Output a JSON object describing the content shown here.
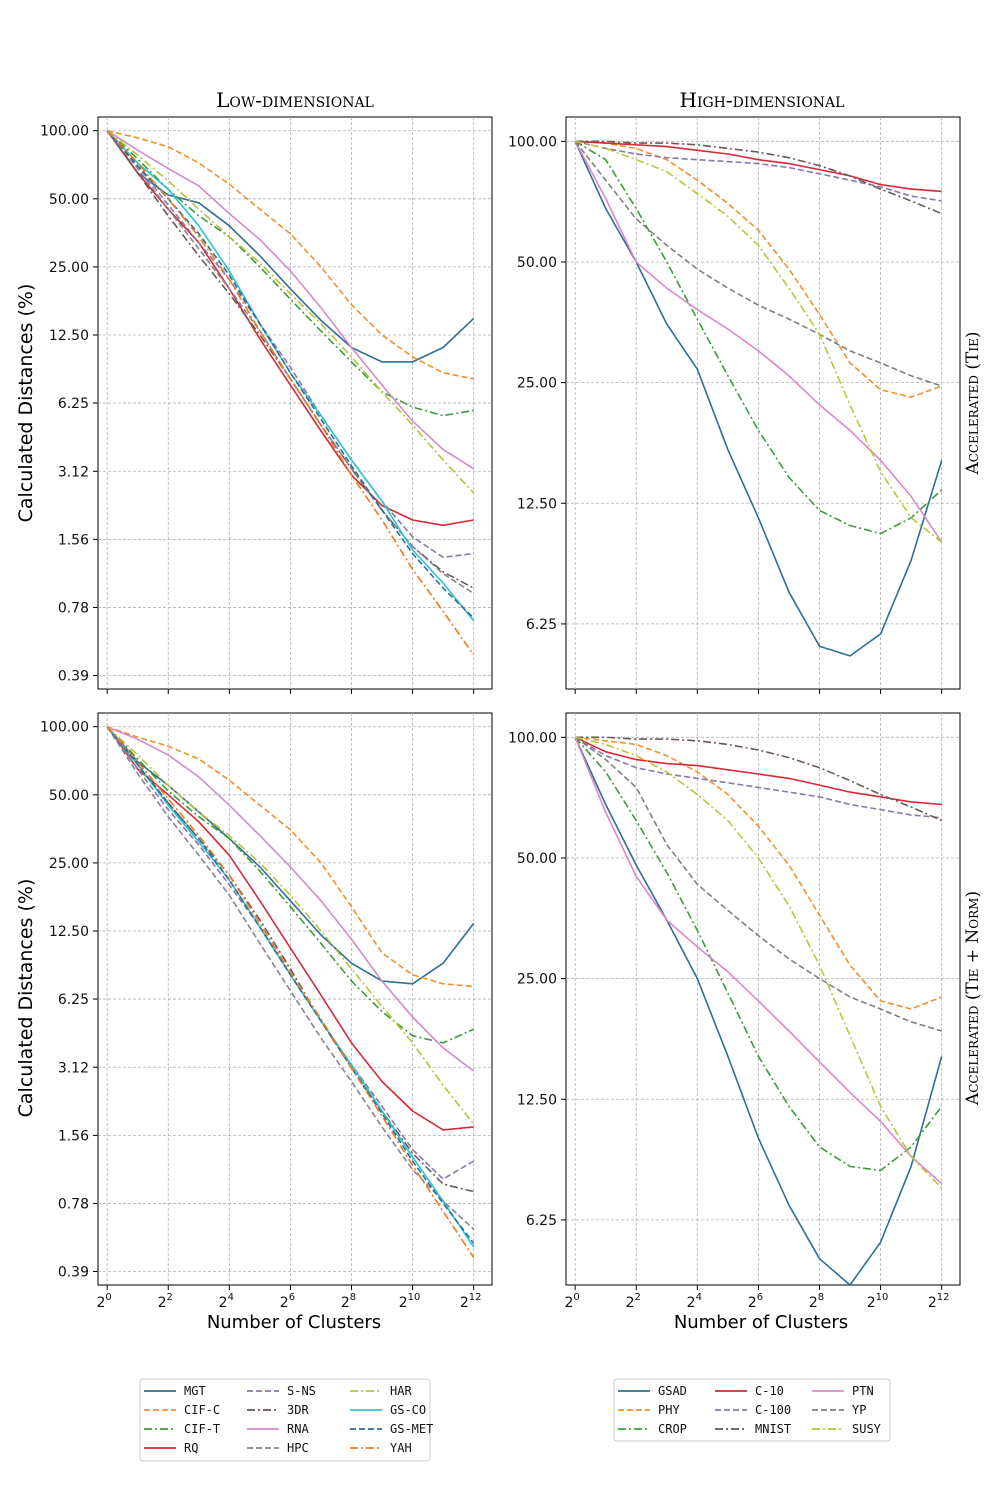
{
  "column_titles": [
    "Low-dimensional",
    "High-dimensional"
  ],
  "row_titles": [
    "Accelerated (Tie)",
    "Accelerated (Tie + Norm)"
  ],
  "ylabel": "Calculated Distances (%)",
  "xlabel": "Number of Clusters",
  "chart_data": [
    {
      "type": "line",
      "title": "Low-dimensional",
      "row": "Accelerated (Tie)",
      "xscale": "log2",
      "yscale": "log2",
      "x": [
        1,
        2,
        4,
        8,
        16,
        32,
        64,
        128,
        256,
        512,
        1024,
        2048,
        4096
      ],
      "xticks": [
        0,
        2,
        4,
        6,
        8,
        10,
        12
      ],
      "yticks": [
        "0.39",
        "0.78",
        "1.56",
        "3.12",
        "6.25",
        "12.50",
        "25.00",
        "50.00",
        "100.00"
      ],
      "ylim": [
        0.34,
        115
      ],
      "series": [
        {
          "name": "MGT",
          "values": [
            100,
            65,
            52,
            48,
            38,
            28,
            20,
            14.5,
            11,
            9.5,
            9.5,
            11,
            14.8
          ]
        },
        {
          "name": "CIF-C",
          "values": [
            100,
            93,
            85,
            72,
            58,
            45,
            35,
            25,
            17,
            12.5,
            10,
            8.5,
            8
          ]
        },
        {
          "name": "CIF-T",
          "values": [
            100,
            75,
            55,
            42,
            34,
            25,
            18,
            13,
            9.5,
            7,
            6,
            5.5,
            5.8
          ]
        },
        {
          "name": "RQ",
          "values": [
            100,
            65,
            45,
            32,
            20,
            12,
            7.5,
            4.7,
            3,
            2.2,
            1.9,
            1.8,
            1.9
          ]
        },
        {
          "name": "S-NS",
          "values": [
            100,
            70,
            47,
            32,
            22,
            14,
            9,
            5.5,
            3.5,
            2.3,
            1.6,
            1.3,
            1.35
          ]
        },
        {
          "name": "3DR",
          "values": [
            100,
            65,
            42,
            28,
            19,
            12.5,
            8,
            5,
            3.2,
            2.1,
            1.45,
            1.12,
            0.95
          ]
        },
        {
          "name": "RNA",
          "values": [
            100,
            82,
            68,
            57,
            43,
            33,
            24,
            16.5,
            11,
            7.5,
            5.2,
            3.9,
            3.2
          ]
        },
        {
          "name": "HPC",
          "values": [
            100,
            68,
            45,
            30,
            20,
            13,
            8,
            5,
            3.2,
            2.1,
            1.45,
            1.1,
            0.9
          ]
        },
        {
          "name": "HAR",
          "values": [
            100,
            78,
            60,
            45,
            34,
            26,
            19,
            14,
            10,
            7,
            5,
            3.5,
            2.5
          ]
        },
        {
          "name": "GS-CO",
          "values": [
            100,
            72,
            55,
            38,
            24,
            14,
            8.5,
            5.5,
            3.5,
            2.3,
            1.4,
            1,
            0.68
          ]
        },
        {
          "name": "GS-MET",
          "values": [
            100,
            70,
            50,
            35,
            23,
            14,
            8.5,
            5.3,
            3.3,
            2.1,
            1.35,
            0.95,
            0.7
          ]
        },
        {
          "name": "YAH",
          "values": [
            100,
            72,
            50,
            34,
            22,
            13,
            8,
            5,
            3,
            1.9,
            1.15,
            0.75,
            0.48
          ]
        }
      ]
    },
    {
      "type": "line",
      "title": "High-dimensional",
      "row": "Accelerated (Tie)",
      "xscale": "log2",
      "yscale": "log2",
      "x": [
        1,
        2,
        4,
        8,
        16,
        32,
        64,
        128,
        256,
        512,
        1024,
        2048,
        4096
      ],
      "xticks": [
        0,
        2,
        4,
        6,
        8,
        10,
        12
      ],
      "yticks": [
        "6.25",
        "12.50",
        "25.00",
        "50.00",
        "100.00"
      ],
      "ylim": [
        4.3,
        115
      ],
      "series": [
        {
          "name": "GSAD",
          "values": [
            100,
            68,
            50,
            35,
            27,
            17,
            11.5,
            7.5,
            5.5,
            5.2,
            5.9,
            9,
            16
          ]
        },
        {
          "name": "PHY",
          "values": [
            100,
            99,
            96,
            90,
            80,
            70,
            60,
            48,
            37,
            28,
            24,
            23,
            24.5
          ]
        },
        {
          "name": "CROP",
          "values": [
            100,
            90,
            68,
            50,
            36,
            26,
            19,
            14.5,
            12,
            11,
            10.5,
            11.5,
            13.5
          ]
        },
        {
          "name": "C-10",
          "values": [
            100,
            99,
            98,
            97,
            95,
            93,
            90,
            88,
            85,
            82,
            78,
            76,
            75
          ]
        },
        {
          "name": "C-100",
          "values": [
            100,
            96,
            93,
            91,
            90,
            89,
            88,
            86,
            83,
            80,
            77,
            73,
            71
          ]
        },
        {
          "name": "MNIST",
          "values": [
            100,
            100,
            99,
            99,
            98,
            96,
            94,
            91,
            87,
            82,
            76,
            71,
            66
          ]
        },
        {
          "name": "PTN",
          "values": [
            100,
            72,
            50,
            43,
            38,
            34,
            30,
            26,
            22,
            19,
            16,
            13,
            10
          ]
        },
        {
          "name": "YP",
          "values": [
            100,
            80,
            64,
            55,
            48,
            43,
            39,
            36,
            33,
            30,
            28,
            26,
            24.5
          ]
        },
        {
          "name": "SUSY",
          "values": [
            100,
            96,
            90,
            84,
            74,
            65,
            55,
            43,
            33,
            22,
            15,
            11.5,
            10
          ]
        }
      ]
    },
    {
      "type": "line",
      "title": "Low-dimensional",
      "row": "Accelerated (Tie + Norm)",
      "xscale": "log2",
      "yscale": "log2",
      "x": [
        1,
        2,
        4,
        8,
        16,
        32,
        64,
        128,
        256,
        512,
        1024,
        2048,
        4096
      ],
      "xticks": [
        0,
        2,
        4,
        6,
        8,
        10,
        12
      ],
      "yticks": [
        "0.39",
        "0.78",
        "1.56",
        "3.12",
        "6.25",
        "12.50",
        "25.00",
        "50.00",
        "100.00"
      ],
      "ylim": [
        0.34,
        115
      ],
      "series": [
        {
          "name": "MGT",
          "values": [
            100,
            70,
            55,
            42,
            32,
            24,
            17,
            12,
            9,
            7.5,
            7.3,
            9,
            13.5
          ]
        },
        {
          "name": "CIF-C",
          "values": [
            100,
            90,
            82,
            72,
            58,
            45,
            35,
            25,
            16,
            10,
            8,
            7.3,
            7.1
          ]
        },
        {
          "name": "CIF-T",
          "values": [
            100,
            72,
            52,
            40,
            32,
            23,
            16,
            11,
            7.5,
            5.5,
            4.3,
            4,
            4.6
          ]
        },
        {
          "name": "RQ",
          "values": [
            100,
            65,
            50,
            38,
            27,
            17,
            10.5,
            6.5,
            4,
            2.7,
            2,
            1.65,
            1.7
          ]
        },
        {
          "name": "S-NS",
          "values": [
            100,
            65,
            43,
            30,
            20,
            13,
            8,
            5,
            3.2,
            2.1,
            1.35,
            1,
            1.2
          ]
        },
        {
          "name": "3DR",
          "values": [
            100,
            68,
            46,
            32,
            22,
            14,
            8.5,
            5,
            3.1,
            2,
            1.3,
            0.95,
            0.88
          ]
        },
        {
          "name": "RNA",
          "values": [
            100,
            88,
            75,
            60,
            45,
            33,
            24,
            17,
            11.5,
            7.5,
            5.2,
            3.8,
            3
          ]
        },
        {
          "name": "HPC",
          "values": [
            100,
            62,
            40,
            27,
            18,
            11,
            6.8,
            4.2,
            2.7,
            1.7,
            1.1,
            0.8,
            0.6
          ]
        },
        {
          "name": "HAR",
          "values": [
            100,
            75,
            55,
            42,
            33,
            25,
            18,
            12.5,
            8.5,
            5.8,
            4,
            2.6,
            1.75
          ]
        },
        {
          "name": "GS-CO",
          "values": [
            100,
            68,
            45,
            31,
            21,
            13,
            8,
            5,
            3.2,
            2,
            1.25,
            0.8,
            0.5
          ]
        },
        {
          "name": "GS-MET",
          "values": [
            100,
            68,
            46,
            32,
            21,
            13,
            8,
            5,
            3.1,
            1.95,
            1.2,
            0.78,
            0.52
          ]
        },
        {
          "name": "YAH",
          "values": [
            100,
            70,
            48,
            33,
            22,
            13.5,
            8.2,
            5.1,
            3.1,
            1.9,
            1.15,
            0.72,
            0.45
          ]
        }
      ]
    },
    {
      "type": "line",
      "title": "High-dimensional",
      "row": "Accelerated (Tie + Norm)",
      "xscale": "log2",
      "yscale": "log2",
      "x": [
        1,
        2,
        4,
        8,
        16,
        32,
        64,
        128,
        256,
        512,
        1024,
        2048,
        4096
      ],
      "xticks": [
        0,
        2,
        4,
        6,
        8,
        10,
        12
      ],
      "yticks": [
        "6.25",
        "12.50",
        "25.00",
        "50.00",
        "100.00"
      ],
      "ylim": [
        4.3,
        115
      ],
      "series": [
        {
          "name": "GSAD",
          "values": [
            100,
            68,
            48,
            35,
            25,
            16,
            10,
            6.8,
            5,
            4.3,
            5.5,
            8.5,
            16
          ]
        },
        {
          "name": "PHY",
          "values": [
            100,
            98,
            96,
            90,
            82,
            72,
            60,
            48,
            36,
            27,
            22,
            21,
            22.5
          ]
        },
        {
          "name": "CROP",
          "values": [
            100,
            82,
            62,
            46,
            33,
            23,
            16,
            12,
            9.5,
            8.5,
            8.3,
            9.5,
            12
          ]
        },
        {
          "name": "C-10",
          "values": [
            100,
            92,
            88,
            86,
            85,
            83,
            81,
            79,
            76,
            73,
            71,
            69,
            68
          ]
        },
        {
          "name": "C-100",
          "values": [
            100,
            90,
            84,
            81,
            79,
            77,
            75,
            73,
            71,
            68,
            66,
            64,
            63
          ]
        },
        {
          "name": "MNIST",
          "values": [
            100,
            100,
            99,
            99,
            98,
            96,
            93,
            89,
            84,
            78,
            72,
            67,
            62
          ]
        },
        {
          "name": "PTN",
          "values": [
            100,
            65,
            45,
            35,
            30,
            26,
            22,
            18.5,
            15.5,
            13,
            11,
            9,
            7.7
          ]
        },
        {
          "name": "YP",
          "values": [
            100,
            88,
            75,
            54,
            43,
            37,
            32,
            28,
            25,
            22.5,
            21,
            19.5,
            18.5
          ]
        },
        {
          "name": "SUSY",
          "values": [
            100,
            96,
            90,
            82,
            72,
            62,
            50,
            38,
            27,
            18,
            12,
            9,
            7.5
          ]
        }
      ]
    }
  ],
  "legends": [
    {
      "columns": [
        [
          "MGT",
          "CIF-C",
          "CIF-T",
          "RQ"
        ],
        [
          "S-NS",
          "3DR",
          "RNA",
          "HPC"
        ],
        [
          "HAR",
          "GS-CO",
          "GS-MET",
          "YAH"
        ]
      ]
    },
    {
      "columns": [
        [
          "GSAD",
          "PHY",
          "CROP"
        ],
        [
          "C-10",
          "C-100",
          "MNIST"
        ],
        [
          "PTN",
          "YP",
          "SUSY"
        ]
      ]
    }
  ],
  "styles": {
    "MGT": {
      "color": "#2e6f95",
      "dash": "solid"
    },
    "CIF-C": {
      "color": "#f0912f",
      "dash": "dashed"
    },
    "CIF-T": {
      "color": "#3d9b3d",
      "dash": "dashdot"
    },
    "RQ": {
      "color": "#d62a36",
      "dash": "solid"
    },
    "S-NS": {
      "color": "#8a78a8",
      "dash": "dashed"
    },
    "3DR": {
      "color": "#6b5a55",
      "dash": "dashdot"
    },
    "RNA": {
      "color": "#d68ac6",
      "dash": "solid"
    },
    "HPC": {
      "color": "#8f7f96",
      "dash": "dashed"
    },
    "HAR": {
      "color": "#b5c23a",
      "dash": "dashdot"
    },
    "GS-CO": {
      "color": "#2ec4cf",
      "dash": "solid"
    },
    "GS-MET": {
      "color": "#2e6f95",
      "dash": "dashed"
    },
    "YAH": {
      "color": "#f07a1e",
      "dash": "dashdot"
    },
    "GSAD": {
      "color": "#2e6f95",
      "dash": "solid"
    },
    "PHY": {
      "color": "#f0912f",
      "dash": "dashed"
    },
    "CROP": {
      "color": "#3d9b3d",
      "dash": "dashdot"
    },
    "C-10": {
      "color": "#d62a36",
      "dash": "solid"
    },
    "C-100": {
      "color": "#8a78a8",
      "dash": "dashed"
    },
    "MNIST": {
      "color": "#6b5a55",
      "dash": "dashdot"
    },
    "PTN": {
      "color": "#de87c8",
      "dash": "solid"
    },
    "YP": {
      "color": "#808080",
      "dash": "dashed"
    },
    "SUSY": {
      "color": "#bcc43a",
      "dash": "dashdot"
    }
  }
}
